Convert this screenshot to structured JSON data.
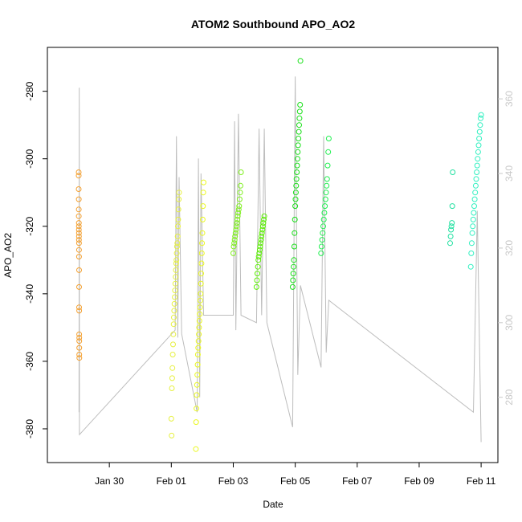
{
  "chart_data": {
    "type": "scatter",
    "title": "ATOM2 Southbound APO_AO2",
    "xlabel": "Date",
    "ylabel": "APO_AO2",
    "xlim": [
      "2017-01-28T00:00",
      "2017-02-11T13:00"
    ],
    "ylim": [
      -390,
      -267
    ],
    "y2lim": [
      262.5,
      373.8
    ],
    "x_ticks": [
      {
        "x": "2017-01-30",
        "label": "Jan 30"
      },
      {
        "x": "2017-02-01",
        "label": "Feb 01"
      },
      {
        "x": "2017-02-03",
        "label": "Feb 03"
      },
      {
        "x": "2017-02-05",
        "label": "Feb 05"
      },
      {
        "x": "2017-02-07",
        "label": "Feb 07"
      },
      {
        "x": "2017-02-09",
        "label": "Feb 09"
      },
      {
        "x": "2017-02-11",
        "label": "Feb 11"
      }
    ],
    "y_ticks": [
      -280,
      -300,
      -320,
      -340,
      -360,
      -380
    ],
    "y2_ticks": [
      280,
      300,
      320,
      340,
      360
    ],
    "grid": false,
    "series": [
      {
        "color": "#f4a030",
        "x_range": [
          "2017-01-29T00:15",
          "2017-01-29T00:45"
        ],
        "y": [
          -304,
          -305,
          -309,
          -312,
          -315,
          -317,
          -319,
          -320,
          -321,
          -322,
          -323,
          -324,
          -325,
          -327,
          -329,
          -333,
          -338,
          -344,
          -345,
          -352,
          -353,
          -354,
          -356,
          -358,
          -359
        ]
      },
      {
        "color": "#e6f040",
        "x_range": [
          "2017-02-01T00:00",
          "2017-02-01T06:00"
        ],
        "y": [
          -377,
          -382,
          -368,
          -365,
          -362,
          -358,
          -355,
          -352,
          -349,
          -347,
          -345,
          -343,
          -341,
          -339,
          -337,
          -335,
          -333,
          -331,
          -330,
          -328,
          -326,
          -325,
          -323,
          -320,
          -318,
          -315,
          -312,
          -310
        ]
      },
      {
        "color": "#eaf820",
        "x_range": [
          "2017-02-01T19:00",
          "2017-02-02T01:00"
        ],
        "y": [
          -386,
          -378,
          -374,
          -370,
          -367,
          -364,
          -361,
          -358,
          -356,
          -354,
          -352,
          -350,
          -348,
          -346,
          -344,
          -342,
          -340,
          -337,
          -334,
          -331,
          -328,
          -325,
          -322,
          -318,
          -314,
          -310,
          -307
        ]
      },
      {
        "color": "#80f020",
        "x_range": [
          "2017-02-03T00:00",
          "2017-02-03T06:00"
        ],
        "y": [
          -328,
          -326,
          -325,
          -324,
          -323,
          -322,
          -321,
          -320,
          -319,
          -318,
          -317,
          -316,
          -315,
          -314,
          -312,
          -310,
          -308,
          -304
        ]
      },
      {
        "color": "#5af000",
        "x_range": [
          "2017-02-03T18:00",
          "2017-02-04T00:00"
        ],
        "y": [
          -338,
          -336,
          -334,
          -332,
          -330,
          -329,
          -328,
          -327,
          -326,
          -325,
          -324,
          -323,
          -322,
          -321,
          -320,
          -319,
          -318,
          -317
        ]
      },
      {
        "color": "#18e018",
        "x_range": [
          "2017-02-04T22:00",
          "2017-02-05T04:00"
        ],
        "y": [
          -338,
          -336,
          -334,
          -332,
          -330,
          -326,
          -322,
          -318,
          -314,
          -312,
          -310,
          -308,
          -306,
          -304,
          -302,
          -300,
          -298,
          -296,
          -294,
          -292,
          -290,
          -288,
          -286,
          -284,
          -271
        ]
      },
      {
        "color": "#20f050",
        "x_range": [
          "2017-02-05T20:00",
          "2017-02-06T02:00"
        ],
        "y": [
          -328,
          -326,
          -324,
          -322,
          -320,
          -318,
          -316,
          -314,
          -312,
          -310,
          -308,
          -306,
          -302,
          -298,
          -294
        ]
      },
      {
        "color": "#20e0a0",
        "x_range": [
          "2017-02-10T00:00",
          "2017-02-10T02:00"
        ],
        "y": [
          -325,
          -323,
          -321,
          -320,
          -319,
          -314,
          -304
        ]
      },
      {
        "color": "#30f0c0",
        "x_range": [
          "2017-02-10T16:00",
          "2017-02-11T00:00"
        ],
        "y": [
          -332,
          -328,
          -325,
          -322,
          -320,
          -318,
          -316,
          -314,
          -312,
          -310,
          -308,
          -306,
          -304,
          -302,
          -300,
          -298,
          -296,
          -294,
          -292,
          -290,
          -288,
          -287
        ]
      }
    ],
    "secondary_line": {
      "color": "#bdbdbd",
      "note": "secondary y-axis (right, light gray) line trace",
      "points": [
        [
          "2017-01-29T00:30",
          276
        ],
        [
          "2017-01-29T00:40",
          363
        ],
        [
          "2017-01-29T00:50",
          270
        ],
        [
          "2017-02-01T03:00",
          298
        ],
        [
          "2017-02-01T04:00",
          350
        ],
        [
          "2017-02-01T05:00",
          296
        ],
        [
          "2017-02-01T06:00",
          339
        ],
        [
          "2017-02-01T08:00",
          297
        ],
        [
          "2017-02-01T20:00",
          276
        ],
        [
          "2017-02-01T21:00",
          344
        ],
        [
          "2017-02-01T22:00",
          280
        ],
        [
          "2017-02-01T23:00",
          340
        ],
        [
          "2017-02-02T01:00",
          302
        ],
        [
          "2017-02-03T00:00",
          302
        ],
        [
          "2017-02-03T01:00",
          354
        ],
        [
          "2017-02-03T02:00",
          298
        ],
        [
          "2017-02-03T04:00",
          356
        ],
        [
          "2017-02-03T06:00",
          302
        ],
        [
          "2017-02-03T18:00",
          300
        ],
        [
          "2017-02-03T20:00",
          352
        ],
        [
          "2017-02-03T22:00",
          302
        ],
        [
          "2017-02-04T00:00",
          352
        ],
        [
          "2017-02-04T02:00",
          300
        ],
        [
          "2017-02-04T22:00",
          272
        ],
        [
          "2017-02-05T00:00",
          366
        ],
        [
          "2017-02-05T02:00",
          286
        ],
        [
          "2017-02-05T04:00",
          310
        ],
        [
          "2017-02-05T20:00",
          288
        ],
        [
          "2017-02-05T22:00",
          350
        ],
        [
          "2017-02-06T00:00",
          292
        ],
        [
          "2017-02-06T02:00",
          306
        ],
        [
          "2017-02-10T18:00",
          276
        ],
        [
          "2017-02-10T21:00",
          330
        ],
        [
          "2017-02-11T00:00",
          268
        ]
      ]
    }
  }
}
